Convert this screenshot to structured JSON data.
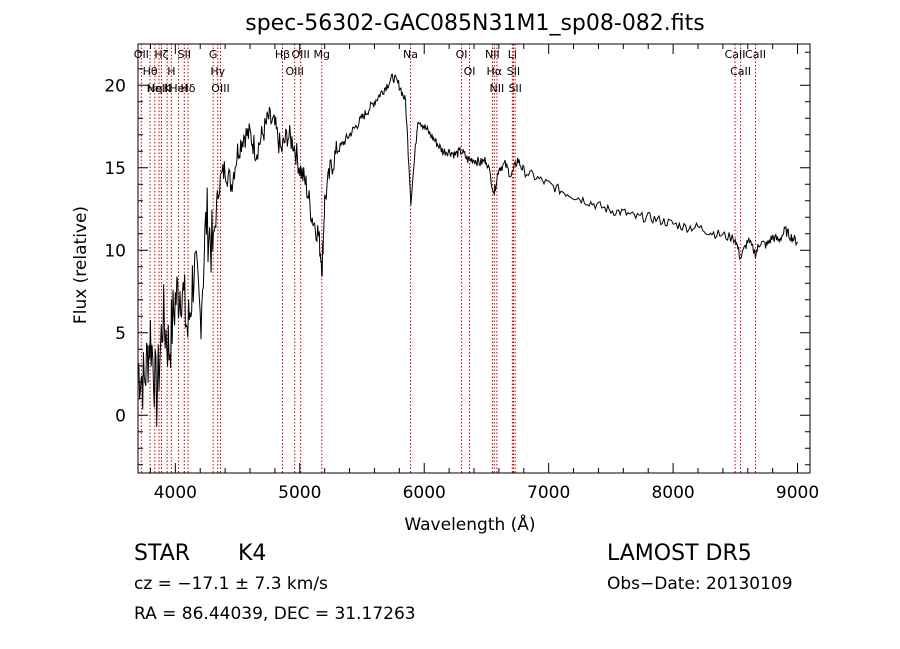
{
  "chart_data": {
    "type": "line",
    "title": "spec-56302-GAC085N31M1_sp08-082.fits",
    "xlabel": "Wavelength (Å)",
    "ylabel": "Flux (relative)",
    "xlim": [
      3700,
      9100
    ],
    "ylim": [
      -3.5,
      22.5
    ],
    "xticks": [
      4000,
      5000,
      6000,
      7000,
      8000,
      9000
    ],
    "yticks": [
      0,
      5,
      10,
      15,
      20
    ],
    "grid": false,
    "series": [
      {
        "x": [
          3700,
          3750,
          3800,
          3850,
          3900,
          3950,
          4000,
          4050,
          4100,
          4150,
          4200,
          4250,
          4300,
          4350,
          4400,
          4450,
          4500,
          4550,
          4600,
          4650,
          4700,
          4750,
          4800,
          4850,
          4900,
          4950,
          5000,
          5050,
          5100,
          5150,
          5180,
          5200,
          5250,
          5300,
          5350,
          5400,
          5450,
          5500,
          5550,
          5600,
          5650,
          5700,
          5750,
          5800,
          5850,
          5893,
          5950,
          6000,
          6050,
          6100,
          6150,
          6200,
          6250,
          6300,
          6350,
          6400,
          6450,
          6500,
          6563,
          6600,
          6650,
          6700,
          6750,
          6800,
          6900,
          7000,
          7100,
          7200,
          7300,
          7400,
          7500,
          7600,
          7700,
          7800,
          7900,
          8000,
          8100,
          8200,
          8300,
          8400,
          8500,
          8542,
          8600,
          8662,
          8700,
          8750,
          8800,
          8850,
          8900,
          8950,
          9000
        ],
        "y": [
          3,
          2,
          5,
          1,
          6,
          4,
          7,
          8,
          5,
          9,
          6,
          12,
          10,
          14,
          15,
          14,
          16,
          17,
          17,
          16,
          17,
          18,
          17.5,
          16,
          17,
          16.5,
          15,
          14,
          12,
          11,
          9,
          13,
          15,
          16,
          16.5,
          17,
          17.5,
          18,
          18.5,
          19,
          19.5,
          20,
          20.5,
          20,
          19,
          13,
          18,
          17.5,
          17,
          16.5,
          16,
          16,
          15.8,
          16,
          15.5,
          15.5,
          15.3,
          15.5,
          13.5,
          15,
          15.2,
          14.5,
          15.5,
          14.8,
          14.4,
          14,
          13.6,
          13.3,
          13,
          12.7,
          12.4,
          12.3,
          12,
          12,
          11.8,
          11.6,
          11.4,
          11.4,
          11.1,
          10.9,
          10.7,
          9.5,
          10.6,
          9.8,
          10.5,
          10.3,
          10.8,
          10.6,
          11.2,
          10.8,
          10.5
        ]
      }
    ],
    "lines": [
      {
        "x": 3727,
        "labels": [
          "OII"
        ]
      },
      {
        "x": 3797,
        "labels": [
          "Hθ"
        ]
      },
      {
        "x": 3835,
        "labels": [
          "Hη"
        ]
      },
      {
        "x": 3869,
        "labels": [
          "NeIII"
        ]
      },
      {
        "x": 3889,
        "labels": [
          "Hζ"
        ]
      },
      {
        "x": 3934,
        "labels": [
          "K"
        ]
      },
      {
        "x": 3968,
        "labels": [
          "H"
        ]
      },
      {
        "x": 4026,
        "labels": [
          "HeI"
        ]
      },
      {
        "x": 4072,
        "labels": [
          "SII"
        ]
      },
      {
        "x": 4102,
        "labels": [
          "Hδ"
        ]
      },
      {
        "x": 4304,
        "labels": [
          "G"
        ]
      },
      {
        "x": 4341,
        "labels": [
          "Hγ"
        ]
      },
      {
        "x": 4363,
        "labels": [
          "OIII"
        ]
      },
      {
        "x": 4861,
        "labels": [
          "Hβ"
        ]
      },
      {
        "x": 4959,
        "labels": [
          "OIII"
        ]
      },
      {
        "x": 5007,
        "labels": [
          "OIII"
        ]
      },
      {
        "x": 5177,
        "labels": [
          "Mg"
        ]
      },
      {
        "x": 5890,
        "labels": [
          "Na"
        ]
      },
      {
        "x": 6300,
        "labels": [
          "OI"
        ]
      },
      {
        "x": 6364,
        "labels": [
          "OI"
        ]
      },
      {
        "x": 6548,
        "labels": [
          "NII"
        ]
      },
      {
        "x": 6563,
        "labels": [
          "Hα"
        ]
      },
      {
        "x": 6584,
        "labels": [
          "NII"
        ]
      },
      {
        "x": 6708,
        "labels": [
          "Li"
        ]
      },
      {
        "x": 6717,
        "labels": [
          "SII"
        ]
      },
      {
        "x": 6731,
        "labels": [
          "SII"
        ]
      },
      {
        "x": 8498,
        "labels": [
          "CaII"
        ]
      },
      {
        "x": 8542,
        "labels": [
          "CaII"
        ]
      },
      {
        "x": 8662,
        "labels": [
          "CaII"
        ]
      }
    ]
  },
  "labels": {
    "class": "STAR",
    "subclass": "K4",
    "survey": "LAMOST  DR5",
    "cz": "cz = −17.1 ± 7.3 km/s",
    "obs_date": "Obs−Date: 20130109",
    "radec": "RA =  86.44039, DEC =  31.17263"
  },
  "colors": {
    "line_marker": "#c00000",
    "spectrum": "#000000"
  }
}
